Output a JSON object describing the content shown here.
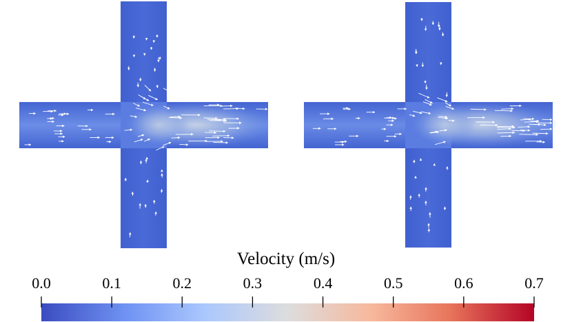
{
  "colorbar": {
    "title": "Velocity (m/s)",
    "min": 0.0,
    "max": 0.7,
    "ticks": [
      "0.0",
      "0.1",
      "0.2",
      "0.3",
      "0.4",
      "0.5",
      "0.6",
      "0.7"
    ],
    "colormap": [
      "#3b4cc0",
      "#6f92f3",
      "#aac7fd",
      "#dddddd",
      "#f7b89c",
      "#e7745b",
      "#b40426"
    ]
  },
  "panels": [
    {
      "name": "left-cross-junction",
      "max_speed": 0.33
    },
    {
      "name": "right-cross-junction",
      "max_speed": 0.31
    }
  ],
  "colors": {
    "background": "#ffffff",
    "arrow": "#ffffff",
    "text": "#000000"
  }
}
